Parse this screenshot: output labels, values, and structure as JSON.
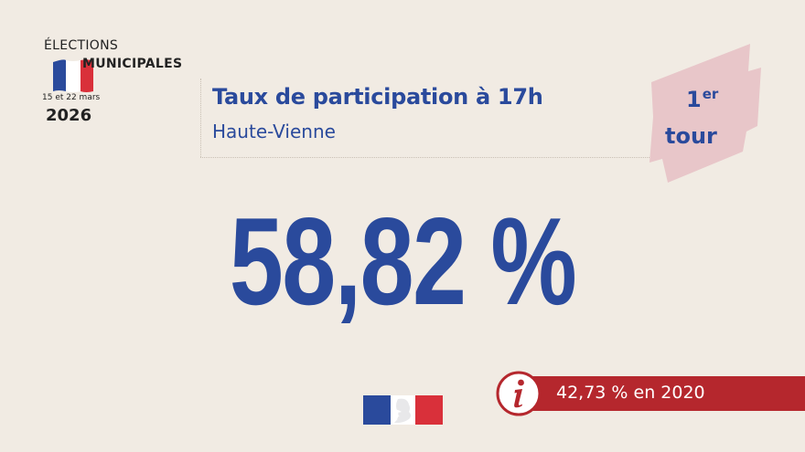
{
  "logo": {
    "line1": "ÉLECTIONS",
    "line2": "MUNICIPALES",
    "dates": "15 et 22 mars",
    "year": "2026"
  },
  "header": {
    "title": "Taux de participation à 17h",
    "subtitle": "Haute-Vienne"
  },
  "tour_badge": {
    "number": "1",
    "suffix": "er",
    "word": "tour"
  },
  "main": {
    "participation_rate": "58,82 %"
  },
  "info": {
    "icon": "info-icon",
    "text": "42,73 % en 2020"
  },
  "colors": {
    "background": "#f1ebe3",
    "primary_blue": "#2a4a9c",
    "accent_red": "#b5272d",
    "badge_pink": "#e8c6c9"
  }
}
